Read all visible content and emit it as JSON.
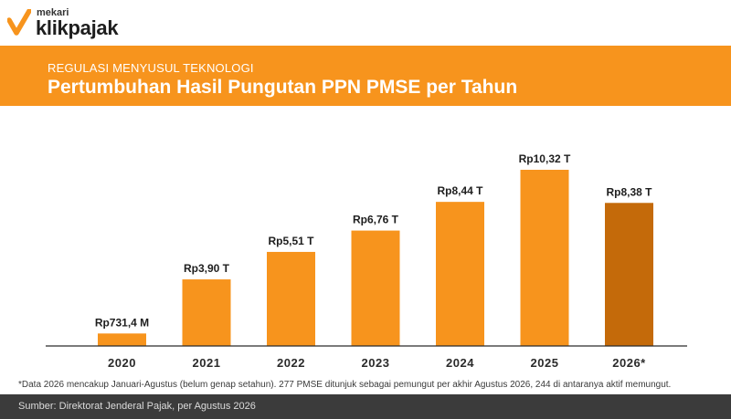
{
  "brand": {
    "small": "mekari",
    "name": "klikpajak",
    "logo_icon": "check-mark-icon",
    "accent_color": "#f7941d"
  },
  "header": {
    "subtitle": "REGULASI MENYUSUL TEKNOLOGI",
    "title": "Pertumbuhan Hasil Pungutan PPN PMSE per Tahun"
  },
  "chart_data": {
    "type": "bar",
    "categories": [
      "2020",
      "2021",
      "2022",
      "2023",
      "2024",
      "2025",
      "2026*"
    ],
    "values": [
      0.7314,
      3.9,
      5.51,
      6.76,
      8.44,
      10.32,
      8.38
    ],
    "data_labels": [
      "Rp731,4 M",
      "Rp3,90 T",
      "Rp5,51 T",
      "Rp6,76 T",
      "Rp8,44 T",
      "Rp10,32 T",
      "Rp8,38 T"
    ],
    "ylim": [
      0,
      10.32
    ],
    "grid": false,
    "bar_color": "#f7941d",
    "highlight_color": "#c46a0a",
    "highlight_index": 6
  },
  "footnote": "*Data 2026 mencakup Januari-Agustus (belum genap setahun). 277 PMSE ditunjuk sebagai pemungut per akhir Agustus 2026, 244 di antaranya aktif memungut.",
  "source": "Sumber: Direktorat Jenderal Pajak, per Agustus 2026"
}
